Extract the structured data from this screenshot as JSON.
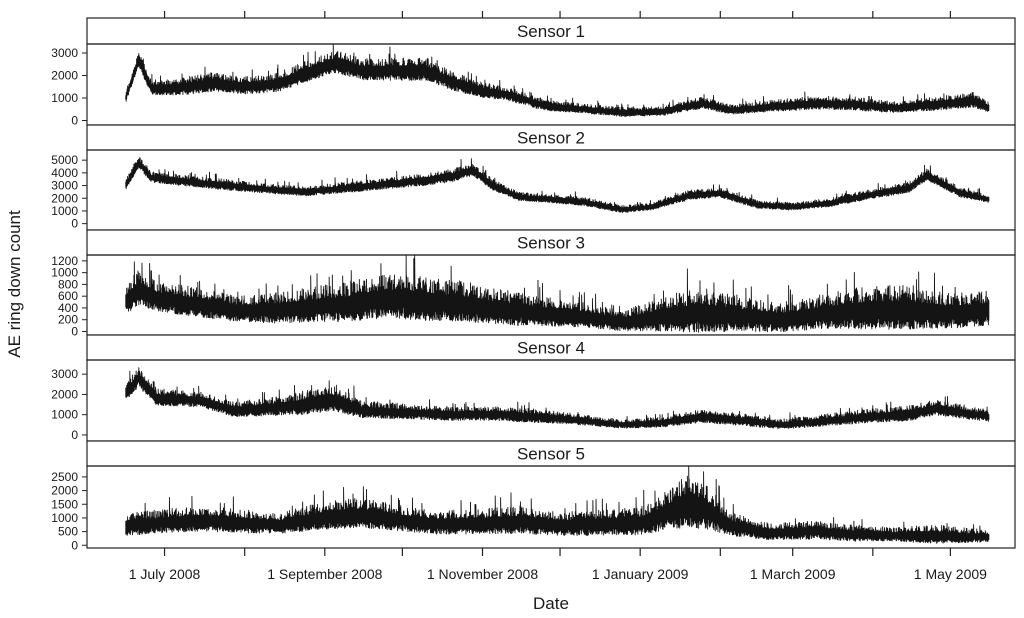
{
  "chart_data": {
    "type": "line",
    "xlabel": "Date",
    "ylabel": "AE ring down count",
    "x_range": [
      "2008-06-01",
      "2009-05-26"
    ],
    "x_ticks": [
      {
        "date": "2008-07-01",
        "label": "1 July 2008"
      },
      {
        "date": "2008-08-01",
        "label": ""
      },
      {
        "date": "2008-09-01",
        "label": "1 September 2008"
      },
      {
        "date": "2008-10-01",
        "label": ""
      },
      {
        "date": "2008-11-01",
        "label": "1 November 2008"
      },
      {
        "date": "2008-12-01",
        "label": ""
      },
      {
        "date": "2009-01-01",
        "label": "1 January 2009"
      },
      {
        "date": "2009-02-01",
        "label": ""
      },
      {
        "date": "2009-03-01",
        "label": "1 March 2009"
      },
      {
        "date": "2009-04-01",
        "label": ""
      },
      {
        "date": "2009-05-01",
        "label": "1 May 2009"
      }
    ],
    "line_color": "#141414",
    "panels": [
      {
        "name": "Sensor 1",
        "ylim": [
          -200,
          3400
        ],
        "yticks": [
          0,
          1000,
          2000,
          3000
        ],
        "series": [
          [
            "2008-06-16",
            1000,
            300
          ],
          [
            "2008-06-21",
            2700,
            400
          ],
          [
            "2008-06-26",
            1400,
            400
          ],
          [
            "2008-07-08",
            1450,
            450
          ],
          [
            "2008-07-20",
            1650,
            500
          ],
          [
            "2008-08-01",
            1500,
            450
          ],
          [
            "2008-08-13",
            1600,
            500
          ],
          [
            "2008-08-25",
            2100,
            550
          ],
          [
            "2008-09-05",
            2550,
            600
          ],
          [
            "2008-09-15",
            2200,
            550
          ],
          [
            "2008-09-28",
            2200,
            600
          ],
          [
            "2008-10-10",
            2200,
            600
          ],
          [
            "2008-10-20",
            1700,
            500
          ],
          [
            "2008-11-01",
            1300,
            400
          ],
          [
            "2008-11-12",
            1100,
            350
          ],
          [
            "2008-11-25",
            650,
            300
          ],
          [
            "2008-12-10",
            500,
            250
          ],
          [
            "2008-12-25",
            350,
            250
          ],
          [
            "2009-01-10",
            400,
            250
          ],
          [
            "2009-01-25",
            750,
            300
          ],
          [
            "2009-02-05",
            450,
            250
          ],
          [
            "2009-02-20",
            600,
            300
          ],
          [
            "2009-03-10",
            750,
            350
          ],
          [
            "2009-03-25",
            700,
            350
          ],
          [
            "2009-04-10",
            550,
            300
          ],
          [
            "2009-04-25",
            700,
            350
          ],
          [
            "2009-05-10",
            850,
            400
          ],
          [
            "2009-05-16",
            550,
            250
          ]
        ]
      },
      {
        "name": "Sensor 2",
        "ylim": [
          -500,
          5800
        ],
        "yticks": [
          0,
          1000,
          2000,
          3000,
          4000,
          5000
        ],
        "series": [
          [
            "2008-06-16",
            3000,
            500
          ],
          [
            "2008-06-21",
            4800,
            600
          ],
          [
            "2008-06-26",
            3600,
            500
          ],
          [
            "2008-07-10",
            3300,
            500
          ],
          [
            "2008-07-25",
            3000,
            500
          ],
          [
            "2008-08-10",
            2700,
            450
          ],
          [
            "2008-08-25",
            2500,
            450
          ],
          [
            "2008-09-10",
            2800,
            500
          ],
          [
            "2008-09-25",
            3100,
            500
          ],
          [
            "2008-10-10",
            3400,
            550
          ],
          [
            "2008-10-20",
            3700,
            600
          ],
          [
            "2008-10-28",
            4200,
            600
          ],
          [
            "2008-11-05",
            3000,
            500
          ],
          [
            "2008-11-15",
            2100,
            400
          ],
          [
            "2008-11-28",
            1900,
            400
          ],
          [
            "2008-12-10",
            1700,
            400
          ],
          [
            "2008-12-25",
            1100,
            350
          ],
          [
            "2009-01-05",
            1300,
            350
          ],
          [
            "2009-01-20",
            2200,
            450
          ],
          [
            "2009-02-01",
            2400,
            450
          ],
          [
            "2009-02-15",
            1500,
            400
          ],
          [
            "2009-03-01",
            1300,
            350
          ],
          [
            "2009-03-15",
            1600,
            400
          ],
          [
            "2009-04-01",
            2300,
            450
          ],
          [
            "2009-04-15",
            2800,
            500
          ],
          [
            "2009-04-22",
            3800,
            550
          ],
          [
            "2009-05-05",
            2400,
            450
          ],
          [
            "2009-05-16",
            1900,
            350
          ]
        ]
      },
      {
        "name": "Sensor 3",
        "ylim": [
          -60,
          1300
        ],
        "yticks": [
          0,
          200,
          400,
          600,
          800,
          1000,
          1200
        ],
        "series": [
          [
            "2008-06-16",
            500,
            300
          ],
          [
            "2008-06-21",
            700,
            350
          ],
          [
            "2008-06-28",
            550,
            300
          ],
          [
            "2008-07-15",
            450,
            300
          ],
          [
            "2008-07-28",
            350,
            250
          ],
          [
            "2008-08-10",
            350,
            300
          ],
          [
            "2008-08-25",
            400,
            350
          ],
          [
            "2008-09-10",
            450,
            400
          ],
          [
            "2008-09-25",
            550,
            450
          ],
          [
            "2008-10-10",
            500,
            450
          ],
          [
            "2008-10-25",
            450,
            400
          ],
          [
            "2008-11-10",
            350,
            350
          ],
          [
            "2008-11-25",
            300,
            300
          ],
          [
            "2008-12-10",
            250,
            250
          ],
          [
            "2008-12-25",
            150,
            200
          ],
          [
            "2009-01-10",
            250,
            350
          ],
          [
            "2009-01-25",
            300,
            450
          ],
          [
            "2009-02-10",
            250,
            350
          ],
          [
            "2009-02-25",
            200,
            300
          ],
          [
            "2009-03-15",
            300,
            350
          ],
          [
            "2009-04-01",
            350,
            450
          ],
          [
            "2009-04-15",
            350,
            450
          ],
          [
            "2009-05-01",
            300,
            350
          ],
          [
            "2009-05-16",
            350,
            350
          ]
        ]
      },
      {
        "name": "Sensor 4",
        "ylim": [
          -300,
          3700
        ],
        "yticks": [
          0,
          1000,
          2000,
          3000
        ],
        "series": [
          [
            "2008-06-16",
            2000,
            500
          ],
          [
            "2008-06-21",
            2800,
            600
          ],
          [
            "2008-06-28",
            1800,
            500
          ],
          [
            "2008-07-15",
            1700,
            450
          ],
          [
            "2008-07-28",
            1200,
            450
          ],
          [
            "2008-08-10",
            1300,
            500
          ],
          [
            "2008-08-25",
            1500,
            700
          ],
          [
            "2008-09-05",
            1700,
            800
          ],
          [
            "2008-09-15",
            1200,
            500
          ],
          [
            "2008-10-01",
            1100,
            450
          ],
          [
            "2008-10-20",
            1000,
            400
          ],
          [
            "2008-11-05",
            1000,
            400
          ],
          [
            "2008-11-20",
            900,
            400
          ],
          [
            "2008-12-10",
            700,
            300
          ],
          [
            "2008-12-25",
            500,
            250
          ],
          [
            "2009-01-10",
            600,
            300
          ],
          [
            "2009-01-25",
            900,
            400
          ],
          [
            "2009-02-10",
            700,
            350
          ],
          [
            "2009-02-25",
            500,
            300
          ],
          [
            "2009-03-15",
            700,
            350
          ],
          [
            "2009-04-01",
            900,
            400
          ],
          [
            "2009-04-15",
            1000,
            450
          ],
          [
            "2009-04-25",
            1300,
            450
          ],
          [
            "2009-05-16",
            900,
            350
          ]
        ]
      },
      {
        "name": "Sensor 5",
        "ylim": [
          -100,
          2900
        ],
        "yticks": [
          0,
          500,
          1000,
          1500,
          2000,
          2500
        ],
        "series": [
          [
            "2008-06-16",
            700,
            500
          ],
          [
            "2008-06-28",
            800,
            500
          ],
          [
            "2008-07-15",
            900,
            550
          ],
          [
            "2008-08-01",
            800,
            500
          ],
          [
            "2008-08-15",
            750,
            450
          ],
          [
            "2008-09-01",
            1000,
            600
          ],
          [
            "2008-09-15",
            1100,
            650
          ],
          [
            "2008-10-01",
            900,
            550
          ],
          [
            "2008-10-15",
            750,
            500
          ],
          [
            "2008-11-01",
            800,
            550
          ],
          [
            "2008-11-15",
            850,
            600
          ],
          [
            "2008-12-01",
            700,
            500
          ],
          [
            "2008-12-15",
            750,
            550
          ],
          [
            "2009-01-01",
            800,
            600
          ],
          [
            "2009-01-10",
            1100,
            800
          ],
          [
            "2009-01-20",
            1500,
            1200
          ],
          [
            "2009-01-28",
            1200,
            900
          ],
          [
            "2009-02-05",
            700,
            500
          ],
          [
            "2009-02-20",
            450,
            350
          ],
          [
            "2009-03-10",
            500,
            400
          ],
          [
            "2009-03-25",
            400,
            350
          ],
          [
            "2009-04-10",
            350,
            300
          ],
          [
            "2009-04-25",
            350,
            400
          ],
          [
            "2009-05-16",
            300,
            250
          ]
        ]
      }
    ]
  }
}
